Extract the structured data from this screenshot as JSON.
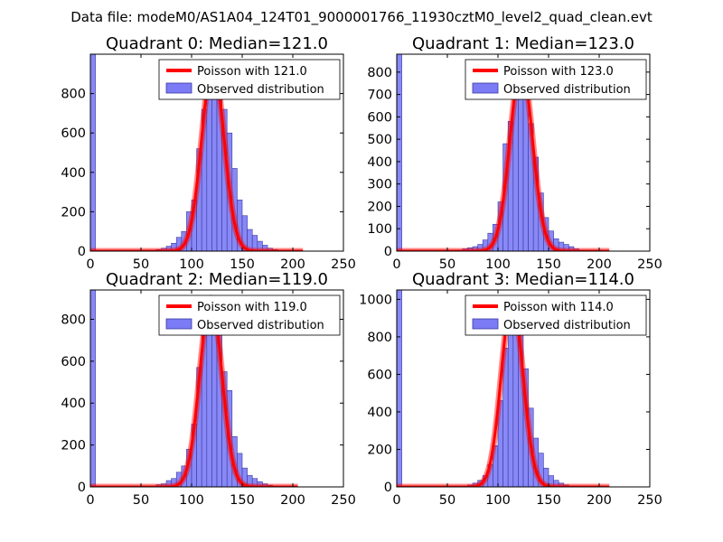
{
  "figure": {
    "suptitle": "Data file: modeM0/AS1A04_124T01_9000001766_11930cztM0_level2_quad_clean.evt"
  },
  "colors": {
    "poisson": "#ff0000",
    "observed_fill": "#7b7bf5",
    "observed_edge": "#3a3aa0",
    "axes": "#000000"
  },
  "chart_data": [
    {
      "type": "bar",
      "title": "Quadrant 0: Median=121.0",
      "median": 121.0,
      "xlim": [
        0,
        250
      ],
      "ylim": [
        0,
        1000
      ],
      "xticks": [
        0,
        50,
        100,
        150,
        200,
        250
      ],
      "yticks": [
        0,
        200,
        400,
        600,
        800
      ],
      "legend": {
        "placement": "upper right",
        "entries": [
          "Poisson with 121.0",
          "Observed distribution"
        ]
      },
      "bin_width": 5,
      "observed_bins": [
        [
          0,
          1000
        ],
        [
          65,
          8
        ],
        [
          70,
          15
        ],
        [
          75,
          25
        ],
        [
          80,
          40
        ],
        [
          85,
          70
        ],
        [
          90,
          100
        ],
        [
          95,
          200
        ],
        [
          100,
          260
        ],
        [
          105,
          520
        ],
        [
          110,
          720
        ],
        [
          115,
          860
        ],
        [
          120,
          930
        ],
        [
          125,
          960
        ],
        [
          130,
          720
        ],
        [
          135,
          600
        ],
        [
          140,
          420
        ],
        [
          145,
          260
        ],
        [
          150,
          180
        ],
        [
          155,
          110
        ],
        [
          160,
          80
        ],
        [
          165,
          50
        ],
        [
          170,
          30
        ],
        [
          175,
          15
        ],
        [
          180,
          8
        ]
      ],
      "poisson_line": {
        "mean": 121.0,
        "peak": 950,
        "x_start": 0,
        "x_end": 210
      }
    },
    {
      "type": "bar",
      "title": "Quadrant 1: Median=123.0",
      "median": 123.0,
      "xlim": [
        0,
        250
      ],
      "ylim": [
        0,
        880
      ],
      "xticks": [
        0,
        50,
        100,
        150,
        200,
        250
      ],
      "yticks": [
        0,
        100,
        200,
        300,
        400,
        500,
        600,
        700,
        800
      ],
      "legend": {
        "placement": "upper right",
        "entries": [
          "Poisson with 123.0",
          "Observed distribution"
        ]
      },
      "bin_width": 5,
      "observed_bins": [
        [
          0,
          880
        ],
        [
          60,
          5
        ],
        [
          65,
          10
        ],
        [
          70,
          15
        ],
        [
          75,
          20
        ],
        [
          80,
          30
        ],
        [
          85,
          50
        ],
        [
          90,
          80
        ],
        [
          95,
          120
        ],
        [
          100,
          220
        ],
        [
          105,
          480
        ],
        [
          110,
          580
        ],
        [
          115,
          720
        ],
        [
          120,
          790
        ],
        [
          125,
          840
        ],
        [
          130,
          570
        ],
        [
          135,
          420
        ],
        [
          140,
          260
        ],
        [
          145,
          150
        ],
        [
          150,
          90
        ],
        [
          155,
          55
        ],
        [
          160,
          40
        ],
        [
          165,
          30
        ],
        [
          170,
          20
        ],
        [
          175,
          10
        ]
      ],
      "poisson_line": {
        "mean": 123.0,
        "peak": 830,
        "x_start": 0,
        "x_end": 210
      }
    },
    {
      "type": "bar",
      "title": "Quadrant 2: Median=119.0",
      "median": 119.0,
      "xlim": [
        0,
        250
      ],
      "ylim": [
        0,
        940
      ],
      "xticks": [
        0,
        50,
        100,
        150,
        200,
        250
      ],
      "yticks": [
        0,
        200,
        400,
        600,
        800
      ],
      "legend": {
        "placement": "upper right",
        "entries": [
          "Poisson with 119.0",
          "Observed distribution"
        ]
      },
      "bin_width": 5,
      "observed_bins": [
        [
          0,
          940
        ],
        [
          65,
          10
        ],
        [
          70,
          15
        ],
        [
          75,
          30
        ],
        [
          80,
          40
        ],
        [
          85,
          70
        ],
        [
          90,
          100
        ],
        [
          95,
          180
        ],
        [
          100,
          300
        ],
        [
          105,
          570
        ],
        [
          110,
          740
        ],
        [
          115,
          880
        ],
        [
          120,
          900
        ],
        [
          125,
          830
        ],
        [
          130,
          550
        ],
        [
          135,
          460
        ],
        [
          140,
          240
        ],
        [
          145,
          160
        ],
        [
          150,
          90
        ],
        [
          155,
          55
        ],
        [
          160,
          40
        ],
        [
          165,
          25
        ],
        [
          170,
          15
        ],
        [
          175,
          8
        ]
      ],
      "poisson_line": {
        "mean": 119.0,
        "peak": 900,
        "x_start": 0,
        "x_end": 205
      }
    },
    {
      "type": "bar",
      "title": "Quadrant 3: Median=114.0",
      "median": 114.0,
      "xlim": [
        0,
        250
      ],
      "ylim": [
        0,
        1050
      ],
      "xticks": [
        0,
        50,
        100,
        150,
        200,
        250
      ],
      "yticks": [
        0,
        200,
        400,
        600,
        800,
        1000
      ],
      "legend": {
        "placement": "upper right",
        "entries": [
          "Poisson with 114.0",
          "Observed distribution"
        ]
      },
      "bin_width": 5,
      "observed_bins": [
        [
          0,
          1050
        ],
        [
          70,
          10
        ],
        [
          75,
          20
        ],
        [
          80,
          35
        ],
        [
          85,
          60
        ],
        [
          90,
          120
        ],
        [
          95,
          220
        ],
        [
          100,
          460
        ],
        [
          105,
          740
        ],
        [
          110,
          950
        ],
        [
          115,
          980
        ],
        [
          120,
          820
        ],
        [
          125,
          630
        ],
        [
          130,
          420
        ],
        [
          135,
          260
        ],
        [
          140,
          180
        ],
        [
          145,
          100
        ],
        [
          150,
          60
        ],
        [
          155,
          35
        ],
        [
          160,
          20
        ],
        [
          165,
          10
        ]
      ],
      "poisson_line": {
        "mean": 114.0,
        "peak": 1000,
        "x_start": 0,
        "x_end": 210
      }
    }
  ]
}
